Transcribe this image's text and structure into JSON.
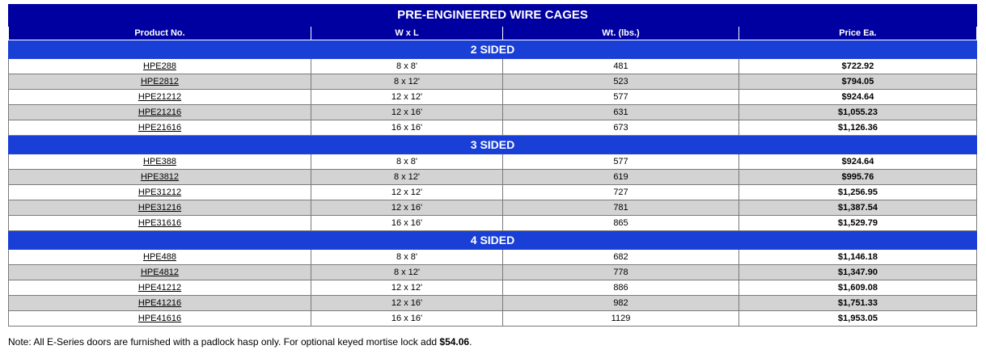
{
  "title": "PRE-ENGINEERED WIRE CAGES",
  "columns": [
    "Product No.",
    "W x L",
    "Wt. (lbs.)",
    "Price Ea."
  ],
  "sections": [
    {
      "label": "2 SIDED",
      "rows": [
        {
          "product": "HPE288",
          "size": "8 x 8'",
          "weight": "481",
          "price": "$722.92"
        },
        {
          "product": "HPE2812",
          "size": "8 x 12'",
          "weight": "523",
          "price": "$794.05"
        },
        {
          "product": "HPE21212",
          "size": "12 x 12'",
          "weight": "577",
          "price": "$924.64"
        },
        {
          "product": "HPE21216",
          "size": "12 x 16'",
          "weight": "631",
          "price": "$1,055.23"
        },
        {
          "product": "HPE21616",
          "size": "16 x 16'",
          "weight": "673",
          "price": "$1,126.36"
        }
      ]
    },
    {
      "label": "3 SIDED",
      "rows": [
        {
          "product": "HPE388",
          "size": "8 x 8'",
          "weight": "577",
          "price": "$924.64"
        },
        {
          "product": "HPE3812",
          "size": "8 x 12'",
          "weight": "619",
          "price": "$995.76"
        },
        {
          "product": "HPE31212",
          "size": "12 x 12'",
          "weight": "727",
          "price": "$1,256.95"
        },
        {
          "product": "HPE31216",
          "size": "12 x 16'",
          "weight": "781",
          "price": "$1,387.54"
        },
        {
          "product": "HPE31616",
          "size": "16 x 16'",
          "weight": "865",
          "price": "$1,529.79"
        }
      ]
    },
    {
      "label": "4 SIDED",
      "rows": [
        {
          "product": "HPE488",
          "size": "8 x 8'",
          "weight": "682",
          "price": "$1,146.18"
        },
        {
          "product": "HPE4812",
          "size": "8 x 12'",
          "weight": "778",
          "price": "$1,347.90"
        },
        {
          "product": "HPE41212",
          "size": "12 x 12'",
          "weight": "886",
          "price": "$1,609.08"
        },
        {
          "product": "HPE41216",
          "size": "12 x 16'",
          "weight": "982",
          "price": "$1,751.33"
        },
        {
          "product": "HPE41616",
          "size": "16 x 16'",
          "weight": "1129",
          "price": "$1,953.05"
        }
      ]
    }
  ],
  "note": {
    "text": "Note: All E-Series doors are furnished with a padlock hasp only.  For optional keyed mortise lock add ",
    "price": "$54.06",
    "suffix": "."
  },
  "colors": {
    "title_bg": "#0000a0",
    "section_bg": "#1a3fd6",
    "row_alt_bg": "#d3d3d3"
  }
}
